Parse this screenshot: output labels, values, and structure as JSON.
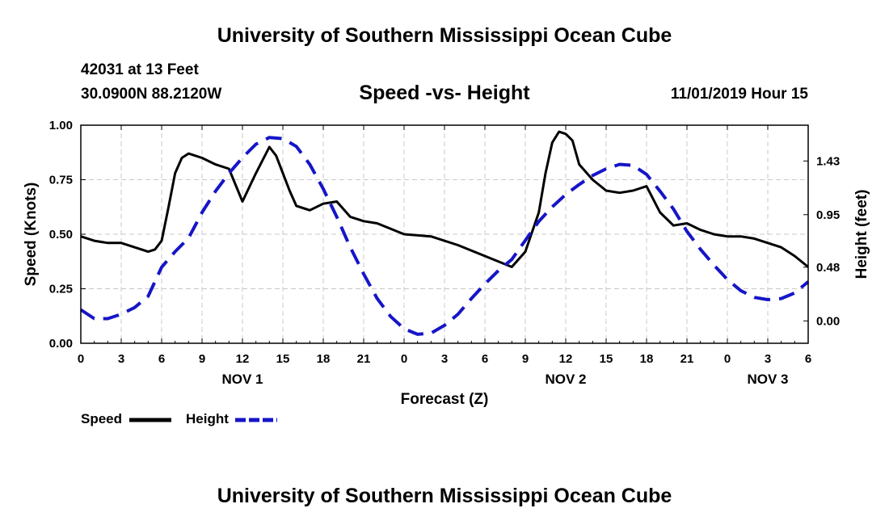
{
  "header": {
    "title": "University of Southern Mississippi Ocean Cube",
    "station": "42031 at 13 Feet",
    "coords": "30.0900N 88.2120W",
    "plot_title": "Speed -vs- Height",
    "datetime": "11/01/2019 Hour 15"
  },
  "footer": {
    "title": "University of Southern Mississippi Ocean Cube"
  },
  "legend": {
    "speed": "Speed",
    "height": "Height"
  },
  "colors": {
    "speed": "#000000",
    "height": "#1515c8",
    "grid": "#c8c8c8"
  },
  "chart_data": {
    "type": "line",
    "title": "Speed -vs- Height",
    "xlabel": "Forecast (Z)",
    "ylabel": "Speed (Knots)",
    "y2label": "Height (feet)",
    "xlim": [
      0,
      54
    ],
    "ylim": [
      0,
      1.0
    ],
    "y2lim": [
      -0.2,
      1.75
    ],
    "x_ticks": [
      0,
      3,
      6,
      9,
      12,
      15,
      18,
      21,
      24,
      27,
      30,
      33,
      36,
      39,
      42,
      45,
      48,
      51,
      54
    ],
    "x_tick_labels": [
      "0",
      "3",
      "6",
      "9",
      "12",
      "15",
      "18",
      "21",
      "0",
      "3",
      "6",
      "9",
      "12",
      "15",
      "18",
      "21",
      "0",
      "3",
      "6"
    ],
    "day_labels": [
      {
        "x": 12,
        "label": "NOV 1"
      },
      {
        "x": 36,
        "label": "NOV 2"
      },
      {
        "x": 51,
        "label": "NOV 3"
      }
    ],
    "y_ticks": [
      0,
      0.25,
      0.5,
      0.75,
      1.0
    ],
    "y_tick_labels": [
      "0.00",
      "0.25",
      "0.50",
      "0.75",
      "1.00"
    ],
    "y2_ticks": [
      0,
      0.48,
      0.95,
      1.43
    ],
    "y2_tick_labels": [
      "0.00",
      "0.48",
      "0.95",
      "1.43"
    ],
    "grid": true,
    "series": [
      {
        "name": "Speed",
        "axis": "left",
        "style": "solid",
        "x": [
          0,
          1,
          2,
          3,
          4,
          5,
          5.5,
          6,
          6.5,
          7,
          7.5,
          8,
          9,
          10,
          11,
          12,
          13,
          14,
          14.5,
          15,
          15.5,
          16,
          17,
          18,
          19,
          20,
          21,
          22,
          24,
          26,
          28,
          30,
          32,
          33,
          34,
          34.5,
          35,
          35.5,
          36,
          36.5,
          37,
          38,
          39,
          40,
          41,
          42,
          43,
          44,
          45,
          46,
          47,
          48,
          49,
          50,
          51,
          52,
          53,
          54
        ],
        "values": [
          0.49,
          0.47,
          0.46,
          0.46,
          0.44,
          0.42,
          0.43,
          0.47,
          0.62,
          0.78,
          0.85,
          0.87,
          0.85,
          0.82,
          0.8,
          0.65,
          0.78,
          0.9,
          0.86,
          0.78,
          0.7,
          0.63,
          0.61,
          0.64,
          0.65,
          0.58,
          0.56,
          0.55,
          0.5,
          0.49,
          0.45,
          0.4,
          0.35,
          0.42,
          0.6,
          0.78,
          0.92,
          0.97,
          0.96,
          0.93,
          0.82,
          0.75,
          0.7,
          0.69,
          0.7,
          0.72,
          0.6,
          0.54,
          0.55,
          0.52,
          0.5,
          0.49,
          0.49,
          0.48,
          0.46,
          0.44,
          0.4,
          0.35
        ]
      },
      {
        "name": "Height",
        "axis": "right",
        "style": "dashed",
        "x": [
          0,
          1,
          2,
          3,
          4,
          5,
          6,
          7,
          8,
          9,
          10,
          11,
          12,
          13,
          14,
          15,
          16,
          17,
          18,
          19,
          20,
          21,
          22,
          23,
          24,
          25,
          26,
          27,
          28,
          29,
          30,
          31,
          32,
          33,
          34,
          35,
          36,
          37,
          38,
          39,
          40,
          41,
          42,
          43,
          44,
          45,
          46,
          47,
          48,
          49,
          50,
          51,
          52,
          53,
          54
        ],
        "values": [
          0.1,
          0.02,
          0.02,
          0.06,
          0.12,
          0.22,
          0.48,
          0.62,
          0.74,
          0.97,
          1.16,
          1.32,
          1.46,
          1.58,
          1.64,
          1.63,
          1.56,
          1.4,
          1.18,
          0.93,
          0.66,
          0.42,
          0.2,
          0.04,
          -0.07,
          -0.12,
          -0.11,
          -0.04,
          0.06,
          0.2,
          0.33,
          0.45,
          0.55,
          0.72,
          0.89,
          1.02,
          1.13,
          1.22,
          1.3,
          1.36,
          1.4,
          1.39,
          1.31,
          1.16,
          1.0,
          0.8,
          0.64,
          0.5,
          0.37,
          0.27,
          0.21,
          0.19,
          0.2,
          0.25,
          0.35
        ]
      }
    ]
  }
}
